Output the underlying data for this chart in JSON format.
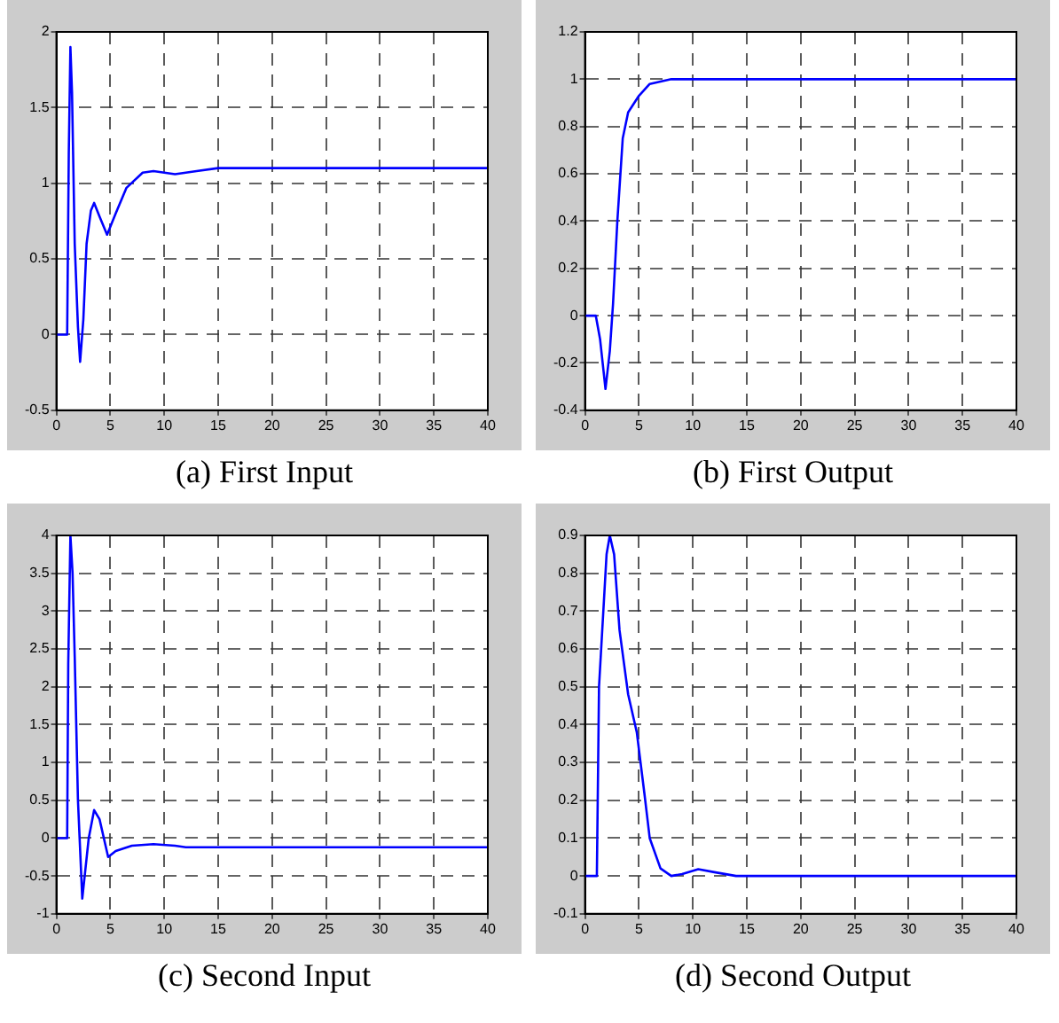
{
  "chart_data": [
    {
      "type": "line",
      "title": "(a) First Input",
      "xlim": [
        0,
        40
      ],
      "xticks": [
        0,
        5,
        10,
        15,
        20,
        25,
        30,
        35,
        40
      ],
      "ylim": [
        -0.5,
        2
      ],
      "yticks": [
        -0.5,
        0,
        0.5,
        1,
        1.5,
        2
      ],
      "grid": true,
      "legend": false,
      "marker": "none",
      "line_style": "solid",
      "series": [
        {
          "color": "#0000ff",
          "x": [
            0,
            1,
            1.15,
            1.3,
            1.45,
            1.7,
            2.0,
            2.2,
            2.5,
            2.8,
            3.2,
            3.5,
            4.0,
            4.7,
            5.5,
            6.5,
            8,
            9,
            11,
            13,
            15,
            20,
            40
          ],
          "values": [
            0,
            0,
            1.2,
            1.9,
            1.6,
            0.6,
            0.05,
            -0.18,
            0.1,
            0.6,
            0.82,
            0.87,
            0.78,
            0.66,
            0.8,
            0.97,
            1.07,
            1.08,
            1.06,
            1.08,
            1.1,
            1.1,
            1.1
          ]
        }
      ]
    },
    {
      "type": "line",
      "title": "(b) First Output",
      "xlim": [
        0,
        40
      ],
      "xticks": [
        0,
        5,
        10,
        15,
        20,
        25,
        30,
        35,
        40
      ],
      "ylim": [
        -0.4,
        1.2
      ],
      "yticks": [
        -0.4,
        -0.2,
        0,
        0.2,
        0.4,
        0.6,
        0.8,
        1,
        1.2
      ],
      "grid": true,
      "legend": false,
      "marker": "none",
      "line_style": "solid",
      "series": [
        {
          "color": "#0000ff",
          "x": [
            0,
            1,
            1.4,
            1.9,
            2.3,
            2.6,
            3.0,
            3.5,
            4.0,
            5.0,
            6.0,
            8,
            10,
            40
          ],
          "values": [
            0,
            0,
            -0.1,
            -0.31,
            -0.15,
            0.05,
            0.4,
            0.75,
            0.86,
            0.93,
            0.98,
            1.0,
            1.0,
            1.0
          ]
        }
      ]
    },
    {
      "type": "line",
      "title": "(c) Second Input",
      "xlim": [
        0,
        40
      ],
      "xticks": [
        0,
        5,
        10,
        15,
        20,
        25,
        30,
        35,
        40
      ],
      "ylim": [
        -1,
        4
      ],
      "yticks": [
        -1,
        -0.5,
        0,
        0.5,
        1,
        1.5,
        2,
        2.5,
        3,
        3.5,
        4
      ],
      "grid": true,
      "legend": false,
      "marker": "none",
      "line_style": "solid",
      "series": [
        {
          "color": "#0000ff",
          "x": [
            0,
            1,
            1.1,
            1.3,
            1.5,
            1.7,
            2.0,
            2.4,
            3.0,
            3.5,
            4.0,
            4.8,
            5.5,
            7,
            9,
            11,
            12,
            40
          ],
          "values": [
            0,
            0,
            2.3,
            4.0,
            3.5,
            2.4,
            0.5,
            -0.8,
            0,
            0.37,
            0.25,
            -0.25,
            -0.17,
            -0.1,
            -0.08,
            -0.1,
            -0.12,
            -0.12
          ]
        }
      ]
    },
    {
      "type": "line",
      "title": "(d) Second Output",
      "xlim": [
        0,
        40
      ],
      "xticks": [
        0,
        5,
        10,
        15,
        20,
        25,
        30,
        35,
        40
      ],
      "ylim": [
        -0.1,
        0.9
      ],
      "yticks": [
        -0.1,
        0,
        0.1,
        0.2,
        0.3,
        0.4,
        0.5,
        0.6,
        0.7,
        0.8,
        0.9
      ],
      "grid": true,
      "legend": false,
      "marker": "none",
      "line_style": "solid",
      "series": [
        {
          "color": "#0000ff",
          "x": [
            0,
            1.1,
            1.3,
            2.0,
            2.3,
            2.7,
            3.2,
            4.0,
            4.8,
            5.5,
            6.0,
            7,
            8,
            9,
            10.5,
            12,
            14,
            15,
            40
          ],
          "values": [
            0,
            0,
            0.5,
            0.85,
            0.9,
            0.85,
            0.65,
            0.48,
            0.38,
            0.22,
            0.1,
            0.02,
            0,
            0.005,
            0.018,
            0.01,
            0,
            0,
            0
          ]
        }
      ]
    }
  ]
}
